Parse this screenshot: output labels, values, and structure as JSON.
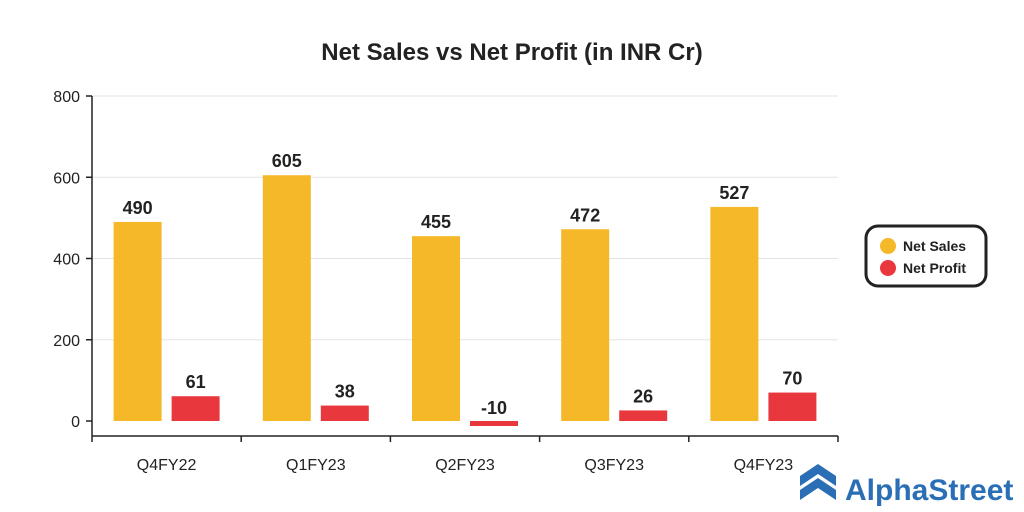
{
  "chart_data": {
    "type": "bar",
    "title": "Net Sales vs Net Profit (in INR Cr)",
    "categories": [
      "Q4FY22",
      "Q1FY23",
      "Q2FY23",
      "Q3FY23",
      "Q4FY23"
    ],
    "series": [
      {
        "name": "Net Sales",
        "color": "#f5b829",
        "values": [
          490,
          605,
          455,
          472,
          527
        ]
      },
      {
        "name": "Net Profit",
        "color": "#e8383d",
        "values": [
          61,
          38,
          -10,
          26,
          70
        ]
      }
    ],
    "ylim": [
      0,
      800
    ],
    "yticks": [
      0,
      200,
      400,
      600,
      800
    ],
    "grid": true,
    "legend_position": "right"
  },
  "branding": {
    "name": "AlphaStreet",
    "color": "#2a6fb5",
    "icon": "alphastreet-logo-icon"
  }
}
